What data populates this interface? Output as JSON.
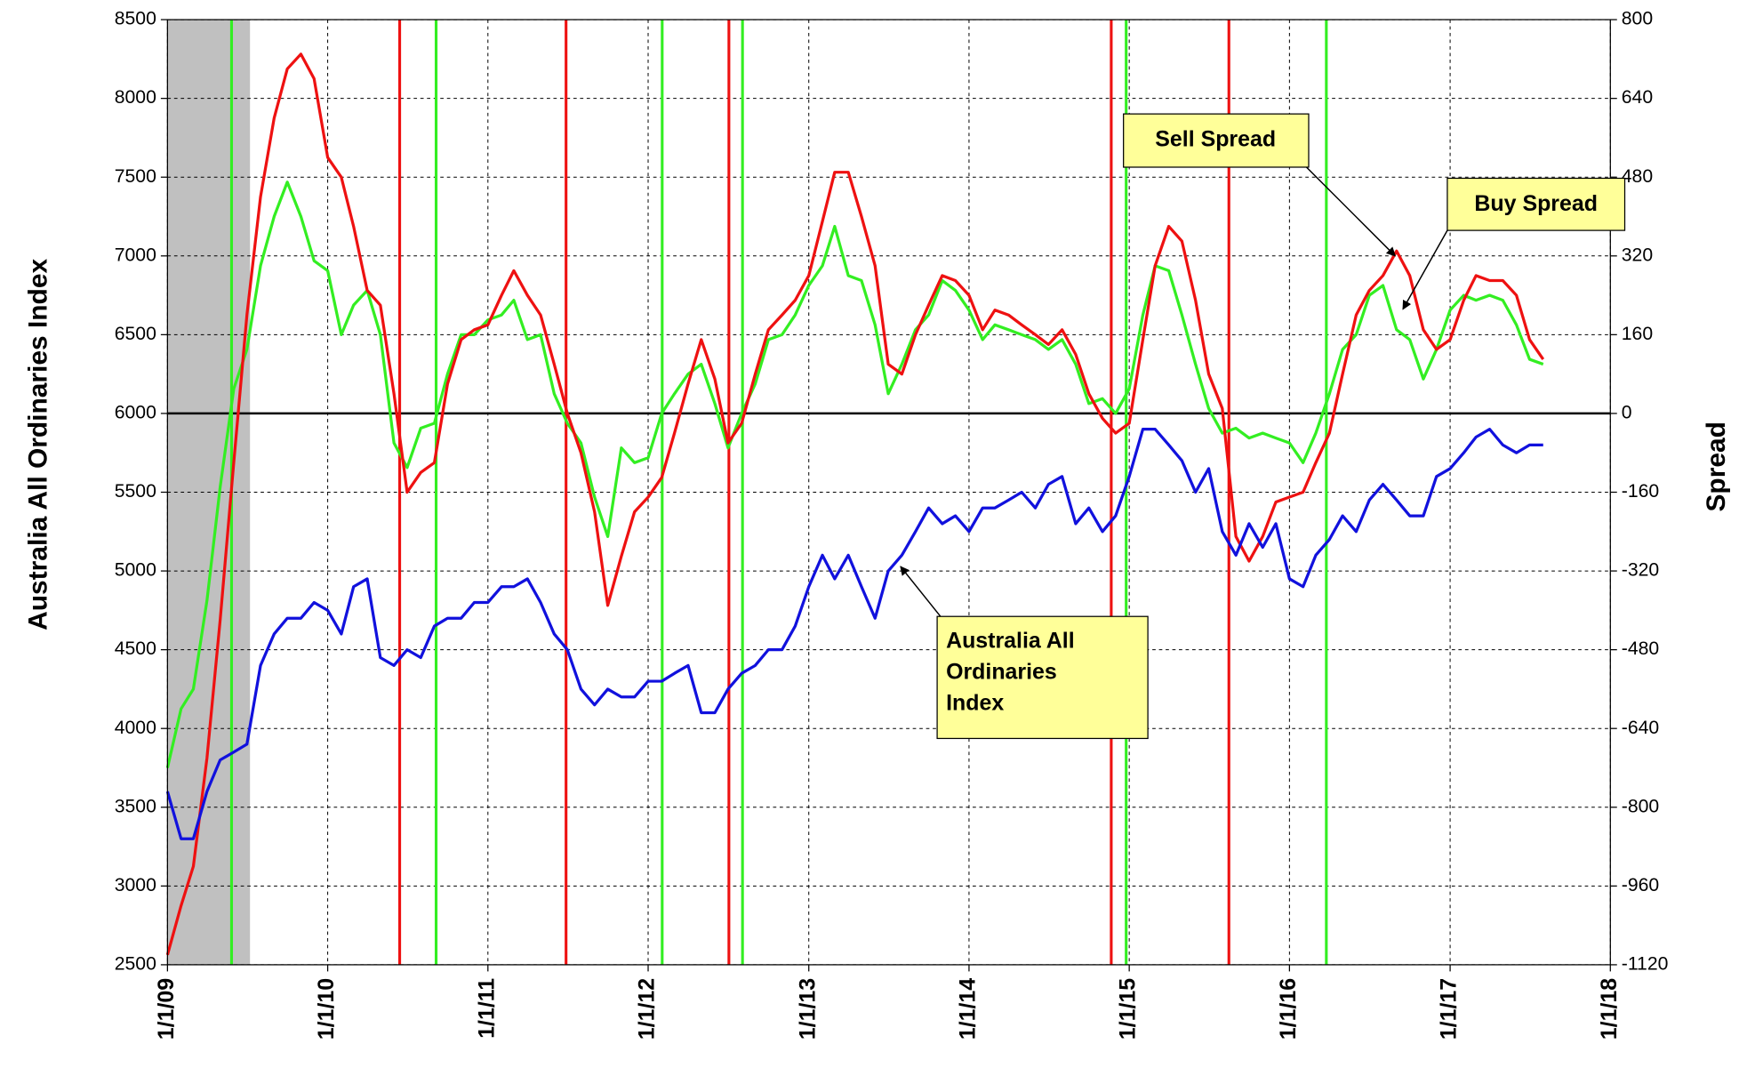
{
  "chart_data": {
    "type": "line",
    "y_axis_label": "Australia All Ordinaries Index",
    "y2_axis_label": "Spread",
    "x": [
      "1/1/09",
      "2/1/09",
      "3/1/09",
      "4/1/09",
      "5/1/09",
      "6/1/09",
      "7/1/09",
      "8/1/09",
      "9/1/09",
      "10/1/09",
      "11/1/09",
      "12/1/09",
      "1/1/10",
      "2/1/10",
      "3/1/10",
      "4/1/10",
      "5/1/10",
      "6/1/10",
      "7/1/10",
      "8/1/10",
      "9/1/10",
      "10/1/10",
      "11/1/10",
      "12/1/10",
      "1/1/11",
      "2/1/11",
      "3/1/11",
      "4/1/11",
      "5/1/11",
      "6/1/11",
      "7/1/11",
      "8/1/11",
      "9/1/11",
      "10/1/11",
      "11/1/11",
      "12/1/11",
      "1/1/12",
      "2/1/12",
      "3/1/12",
      "4/1/12",
      "5/1/12",
      "6/1/12",
      "7/1/12",
      "8/1/12",
      "9/1/12",
      "10/1/12",
      "11/1/12",
      "12/1/12",
      "1/1/13",
      "2/1/13",
      "3/1/13",
      "4/1/13",
      "5/1/13",
      "6/1/13",
      "7/1/13",
      "8/1/13",
      "9/1/13",
      "10/1/13",
      "11/1/13",
      "12/1/13",
      "1/1/14",
      "2/1/14",
      "3/1/14",
      "4/1/14",
      "5/1/14",
      "6/1/14",
      "7/1/14",
      "8/1/14",
      "9/1/14",
      "10/1/14",
      "11/1/14",
      "12/1/14",
      "1/1/15",
      "2/1/15",
      "3/1/15",
      "4/1/15",
      "5/1/15",
      "6/1/15",
      "7/1/15",
      "8/1/15",
      "9/1/15",
      "10/1/15",
      "11/1/15",
      "12/1/15",
      "1/1/16",
      "2/1/16",
      "3/1/16",
      "4/1/16",
      "5/1/16",
      "6/1/16",
      "7/1/16",
      "8/1/16",
      "9/1/16",
      "10/1/16",
      "11/1/16",
      "12/1/16",
      "1/1/17",
      "2/1/17",
      "3/1/17",
      "4/1/17",
      "5/1/17",
      "6/1/17",
      "7/1/17",
      "8/1/17"
    ],
    "series": [
      {
        "name": "Buy Spread",
        "color": "#33ee22",
        "axis": "y2",
        "values": [
          -720,
          -600,
          -560,
          -380,
          -150,
          50,
          130,
          300,
          400,
          470,
          400,
          310,
          290,
          160,
          220,
          250,
          160,
          -60,
          -110,
          -30,
          -20,
          80,
          160,
          160,
          190,
          200,
          230,
          150,
          160,
          40,
          -20,
          -60,
          -170,
          -250,
          -70,
          -100,
          -90,
          0,
          40,
          80,
          100,
          20,
          -70,
          0,
          60,
          150,
          160,
          200,
          260,
          300,
          380,
          280,
          270,
          180,
          40,
          100,
          170,
          200,
          270,
          250,
          210,
          150,
          180,
          170,
          160,
          150,
          130,
          150,
          100,
          20,
          30,
          0,
          50,
          200,
          300,
          290,
          200,
          100,
          10,
          -40,
          -30,
          -50,
          -40,
          -50,
          -60,
          -100,
          -40,
          40,
          130,
          160,
          240,
          260,
          170,
          150,
          70,
          130,
          210,
          240,
          230,
          240,
          230,
          180,
          110,
          100
        ]
      },
      {
        "name": "Sell Spread",
        "color": "#ee1111",
        "axis": "y2",
        "values": [
          -1100,
          -1000,
          -920,
          -700,
          -420,
          -100,
          200,
          440,
          600,
          700,
          730,
          680,
          520,
          480,
          380,
          250,
          220,
          40,
          -160,
          -120,
          -100,
          60,
          150,
          170,
          180,
          240,
          290,
          240,
          200,
          100,
          0,
          -80,
          -200,
          -390,
          -290,
          -200,
          -170,
          -130,
          -40,
          60,
          150,
          70,
          -60,
          -20,
          80,
          170,
          200,
          230,
          280,
          390,
          490,
          490,
          400,
          300,
          100,
          80,
          160,
          220,
          280,
          270,
          240,
          170,
          210,
          200,
          180,
          160,
          140,
          170,
          120,
          40,
          -10,
          -40,
          -20,
          150,
          300,
          380,
          350,
          230,
          80,
          10,
          -250,
          -300,
          -250,
          -180,
          -170,
          -160,
          -100,
          -40,
          80,
          200,
          250,
          280,
          330,
          280,
          170,
          130,
          150,
          230,
          280,
          270,
          270,
          240,
          150,
          110
        ]
      },
      {
        "name": "Australia All Ordinaries Index",
        "color": "#1111dd",
        "axis": "y",
        "values": [
          3600,
          3300,
          3300,
          3600,
          3800,
          3850,
          3900,
          4400,
          4600,
          4700,
          4700,
          4800,
          4750,
          4600,
          4900,
          4950,
          4450,
          4400,
          4500,
          4450,
          4650,
          4700,
          4700,
          4800,
          4800,
          4900,
          4900,
          4950,
          4800,
          4600,
          4500,
          4250,
          4150,
          4250,
          4200,
          4200,
          4300,
          4300,
          4350,
          4400,
          4100,
          4100,
          4250,
          4350,
          4400,
          4500,
          4500,
          4650,
          4900,
          5100,
          4950,
          5100,
          4900,
          4700,
          5000,
          5100,
          5250,
          5400,
          5300,
          5350,
          5250,
          5400,
          5400,
          5450,
          5500,
          5400,
          5550,
          5600,
          5300,
          5400,
          5250,
          5350,
          5600,
          5900,
          5900,
          5800,
          5700,
          5500,
          5650,
          5250,
          5100,
          5300,
          5150,
          5300,
          4950,
          4900,
          5100,
          5200,
          5350,
          5250,
          5450,
          5550,
          5450,
          5350,
          5350,
          5600,
          5650,
          5750,
          5850,
          5900,
          5800,
          5750,
          5800,
          5800
        ]
      }
    ],
    "xlim": [
      "1/1/09",
      "1/1/18"
    ],
    "xticks": [
      "1/1/09",
      "1/1/10",
      "1/1/11",
      "1/1/12",
      "1/1/13",
      "1/1/14",
      "1/1/15",
      "1/1/16",
      "1/1/17",
      "1/1/18"
    ],
    "ylim": [
      2500,
      8500
    ],
    "yticks": [
      2500,
      3000,
      3500,
      4000,
      4500,
      5000,
      5500,
      6000,
      6500,
      7000,
      7500,
      8000,
      8500
    ],
    "y2lim": [
      -1120,
      800
    ],
    "y2ticks": [
      -1120,
      -960,
      -800,
      -640,
      -480,
      -320,
      -160,
      0,
      160,
      320,
      480,
      640,
      800
    ],
    "grid": true,
    "zero_line": {
      "axis": "y2",
      "value": 0,
      "color": "#000000"
    },
    "shaded_range": {
      "x": [
        "1/1/09",
        "7/8/09"
      ],
      "color": "#c0c0c0"
    },
    "sell_signals": {
      "color": "#ee1111",
      "x": [
        "6/14/10",
        "6/28/11",
        "7/3/12",
        "11/21/14",
        "8/16/15"
      ]
    },
    "buy_signals": {
      "color": "#33ee22",
      "x": [
        "5/27/09",
        "9/5/10",
        "2/2/12",
        "8/3/12",
        "12/25/14",
        "3/25/16"
      ]
    },
    "annotations": [
      {
        "text": "Sell Spread"
      },
      {
        "text": "Buy Spread"
      },
      {
        "lines": [
          "Australia All",
          "Ordinaries",
          "Index"
        ]
      }
    ]
  }
}
